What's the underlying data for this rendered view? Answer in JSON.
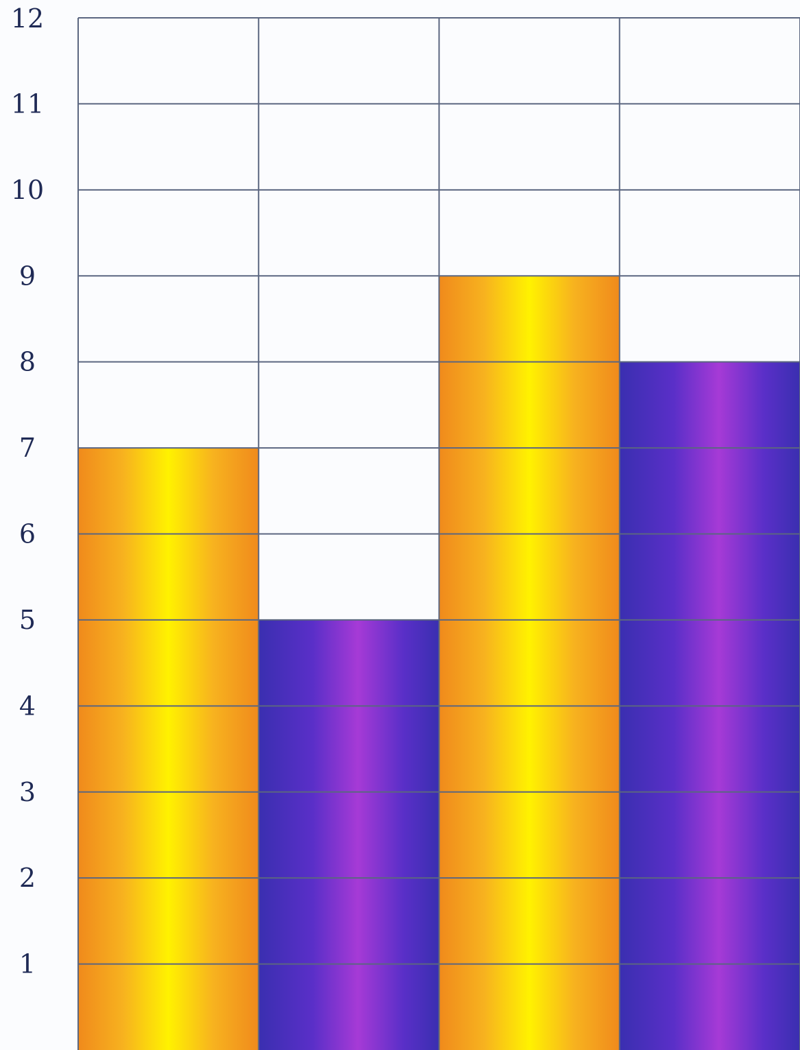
{
  "chart_data": {
    "type": "bar",
    "categories": [
      "",
      "",
      "",
      ""
    ],
    "values": [
      7,
      5,
      9,
      8
    ],
    "bar_colors": [
      "orange-yellow",
      "blue-purple",
      "orange-yellow",
      "blue-purple"
    ],
    "ylim": [
      0,
      12
    ],
    "ytick_labels": [
      "1",
      "2",
      "3",
      "4",
      "5",
      "6",
      "7",
      "8",
      "9",
      "10",
      "11",
      "12"
    ],
    "grid": true,
    "title": "",
    "xlabel": "",
    "ylabel": ""
  },
  "colors": {
    "orange_edge": "#f08a1c",
    "orange_mid": "#f7b21f",
    "yellow_core": "#fff200",
    "blue_edge": "#3a2fb0",
    "blue_mid": "#5a2fc8",
    "purple_core": "#a63ad6",
    "grid": "#5b6680",
    "paper": "#fbfcfe",
    "ink": "#1f2a55"
  }
}
